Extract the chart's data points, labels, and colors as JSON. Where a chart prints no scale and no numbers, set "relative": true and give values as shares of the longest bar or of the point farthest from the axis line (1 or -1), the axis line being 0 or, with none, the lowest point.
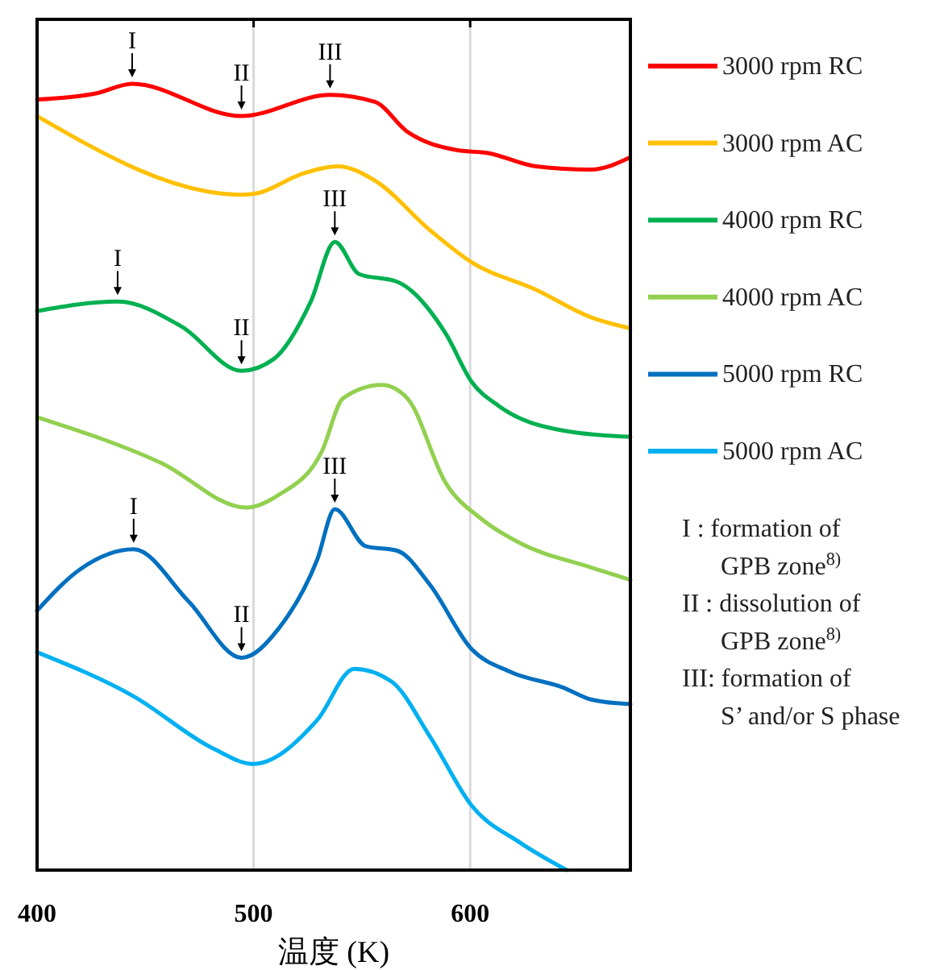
{
  "chart_data": {
    "type": "line",
    "relative": true,
    "xlabel": "温度 (K)",
    "xlim": [
      400,
      674
    ],
    "xticks": [
      400,
      500,
      600
    ],
    "grid": "x",
    "legend": "right",
    "line_style": "solid",
    "marker": "none",
    "series": [
      {
        "name": "3000 rpm RC",
        "color": "#ff0000",
        "x": [
          400,
          427.5,
          443.9,
          494.4,
          535.3,
          556,
          571,
          593.3,
          608.2,
          630.5,
          655.8,
          673.6
        ],
        "values": [
          0.98,
          0.988,
          1.0,
          0.959,
          0.986,
          0.977,
          0.939,
          0.916,
          0.912,
          0.895,
          0.891,
          0.906
        ]
      },
      {
        "name": "3000 rpm AC",
        "color": "#ffc000",
        "x": [
          400,
          494.4,
          501.9,
          521.9,
          539,
          556,
          581.4,
          600.7,
          630.5,
          655.8,
          674
        ],
        "values": [
          0.959,
          0.859,
          0.861,
          0.885,
          0.895,
          0.877,
          0.814,
          0.773,
          0.738,
          0.703,
          0.689
        ]
      },
      {
        "name": "4000 rpm RC",
        "color": "#00b050",
        "x": [
          400,
          437.2,
          466.9,
          494.4,
          509.3,
          526.4,
          537.5,
          548.7,
          566.5,
          588.8,
          600.7,
          613.4,
          643.1,
          674
        ],
        "values": [
          0.711,
          0.723,
          0.691,
          0.635,
          0.65,
          0.723,
          0.799,
          0.758,
          0.748,
          0.682,
          0.621,
          0.59,
          0.559,
          0.551
        ]
      },
      {
        "name": "4000 rpm AC",
        "color": "#92d050",
        "x": [
          400,
          457.2,
          496.7,
          511.5,
          531.6,
          541.3,
          559.1,
          571,
          588.8,
          606,
          623,
          655.8,
          674
        ],
        "values": [
          0.576,
          0.518,
          0.461,
          0.477,
          0.533,
          0.6,
          0.617,
          0.6,
          0.492,
          0.445,
          0.416,
          0.385,
          0.369
        ]
      },
      {
        "name": "5000 rpm RC",
        "color": "#0070c0",
        "x": [
          400,
          420.1,
          444.6,
          469.9,
          494.4,
          511.5,
          529.4,
          537.5,
          551.7,
          566.5,
          581.4,
          600.7,
          618.6,
          643.1,
          655.8,
          674
        ],
        "values": [
          0.33,
          0.383,
          0.408,
          0.342,
          0.27,
          0.307,
          0.395,
          0.459,
          0.412,
          0.406,
          0.363,
          0.281,
          0.252,
          0.232,
          0.217,
          0.211
        ]
      },
      {
        "name": "5000 rpm AC",
        "color": "#00b0f0",
        "x": [
          400,
          444.6,
          481.8,
          499.6,
          529.4,
          546.5,
          563.6,
          581.4,
          600.7,
          623,
          644.6
        ],
        "values": [
          0.277,
          0.221,
          0.154,
          0.135,
          0.191,
          0.256,
          0.24,
          0.17,
          0.082,
          0.035,
          0
        ]
      }
    ],
    "annotations": [
      {
        "text": "I",
        "x": 443.9,
        "y": 1.0
      },
      {
        "text": "II",
        "x": 494.4,
        "y": 0.959
      },
      {
        "text": "III",
        "x": 535.3,
        "y": 0.986
      },
      {
        "text": "I",
        "x": 437.2,
        "y": 0.723
      },
      {
        "text": "II",
        "x": 494.4,
        "y": 0.635
      },
      {
        "text": "III",
        "x": 537.5,
        "y": 0.799
      },
      {
        "text": "I",
        "x": 444.6,
        "y": 0.408
      },
      {
        "text": "II",
        "x": 494.4,
        "y": 0.27
      },
      {
        "text": "III",
        "x": 537.5,
        "y": 0.459
      },
      "I : formation of\nGPB zone$^{8)}$",
      "II : dissolution of\nGPB zone$^{8)}$",
      "III: formation of\nS’ and/or S phase"
    ]
  }
}
